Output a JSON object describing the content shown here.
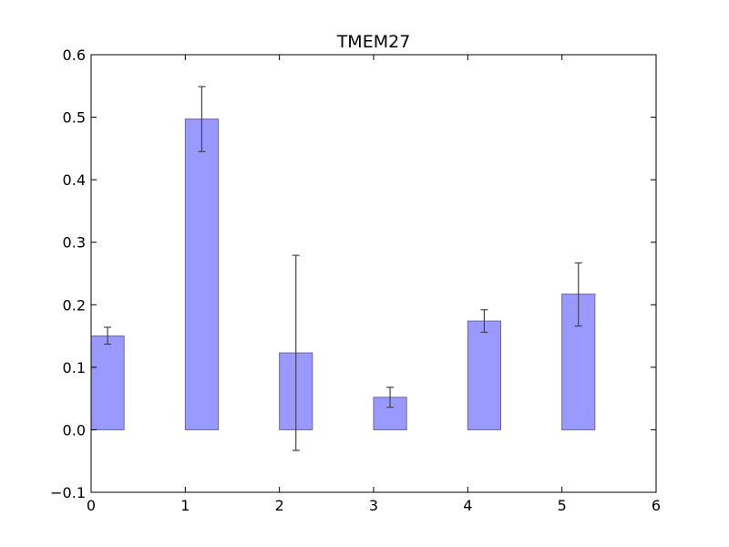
{
  "chart_data": {
    "type": "bar",
    "title": "TMEM27",
    "xlabel": "",
    "ylabel": "",
    "xlim": [
      0,
      6
    ],
    "ylim": [
      -0.1,
      0.6
    ],
    "bar_width": 0.35,
    "x": [
      0,
      1,
      2,
      3,
      4,
      5
    ],
    "values": [
      0.15,
      0.497,
      0.123,
      0.052,
      0.174,
      0.217
    ],
    "error_low": [
      0.137,
      0.445,
      -0.033,
      0.036,
      0.156,
      0.166
    ],
    "error_high": [
      0.164,
      0.549,
      0.279,
      0.068,
      0.192,
      0.267
    ],
    "xticks": [
      0,
      1,
      2,
      3,
      4,
      5,
      6
    ],
    "xtick_labels": [
      "0",
      "1",
      "2",
      "3",
      "4",
      "5",
      "6"
    ],
    "yticks": [
      -0.1,
      0.0,
      0.1,
      0.2,
      0.3,
      0.4,
      0.5,
      0.6
    ],
    "ytick_labels": [
      "−0.1",
      "0.0",
      "0.1",
      "0.2",
      "0.3",
      "0.4",
      "0.5",
      "0.6"
    ],
    "grid": false,
    "bar_color": "#9999ff",
    "bar_edge_color": "#6666aa",
    "error_color": "#444444"
  }
}
